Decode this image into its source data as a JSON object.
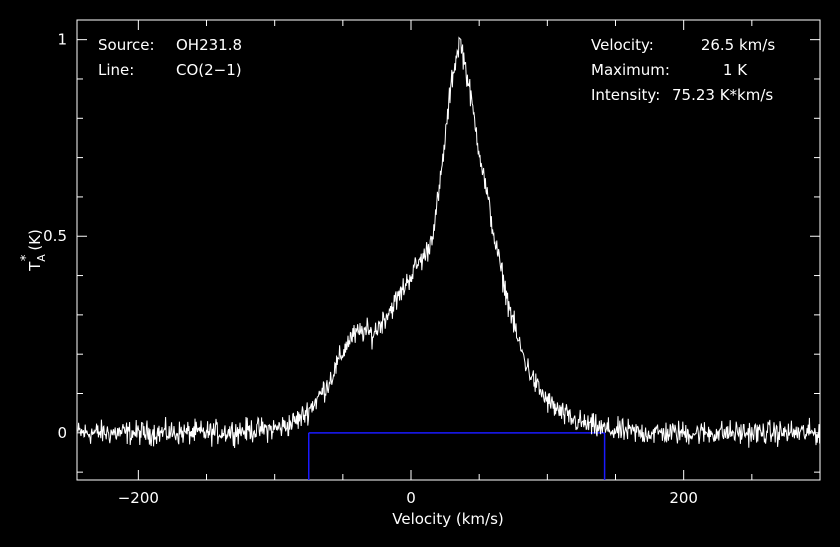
{
  "chart_data": {
    "type": "line",
    "title": "",
    "xlabel": "Velocity (km/s)",
    "ylabel": "T",
    "ylabel_sub": "A",
    "ylabel_sup": "*",
    "ylabel_unit": "(K)",
    "xlim": [
      -245,
      300
    ],
    "ylim": [
      -0.12,
      1.05
    ],
    "x_ticks": [
      -200,
      0,
      200
    ],
    "x_tick_labels": [
      "−200",
      "0",
      "200"
    ],
    "y_ticks": [
      0,
      0.5,
      1
    ],
    "y_tick_labels": [
      "0",
      "0.5",
      "1"
    ],
    "grid": false,
    "series": [
      {
        "x": [
          -245,
          -150,
          -100,
          -90,
          -80,
          -70,
          -60,
          -52,
          -45,
          -40,
          -35,
          -28,
          -20,
          -10,
          -2,
          5,
          10,
          14,
          18,
          22,
          26,
          30,
          34,
          36,
          40,
          44,
          50,
          56,
          62,
          70,
          78,
          85,
          92,
          100,
          110,
          120,
          130,
          140,
          150,
          170,
          200,
          250,
          300
        ],
        "y": [
          0,
          0,
          0.01,
          0.02,
          0.04,
          0.08,
          0.13,
          0.19,
          0.24,
          0.25,
          0.26,
          0.25,
          0.29,
          0.34,
          0.39,
          0.43,
          0.45,
          0.48,
          0.55,
          0.65,
          0.78,
          0.9,
          0.97,
          1.0,
          0.93,
          0.85,
          0.72,
          0.6,
          0.48,
          0.35,
          0.24,
          0.17,
          0.12,
          0.08,
          0.05,
          0.03,
          0.02,
          0.01,
          0.005,
          0,
          0,
          0,
          0
        ]
      }
    ],
    "baseline_window": {
      "x_start": -75,
      "x_end": 142,
      "y": 0
    },
    "colors": {
      "background": "#000000",
      "spectrum": "#ffffff",
      "window": "#1a1aff",
      "axes": "#ffffff"
    }
  },
  "info_left": [
    {
      "label": "Source:",
      "value": "OH231.8"
    },
    {
      "label": "Line:",
      "value": "CO(2−1)"
    }
  ],
  "info_right": [
    {
      "label": "Velocity:",
      "value": "26.5 km/s"
    },
    {
      "label": "Maximum:",
      "value": "1 K"
    },
    {
      "label": "Intensity:",
      "value": "75.23 K*km/s"
    }
  ]
}
